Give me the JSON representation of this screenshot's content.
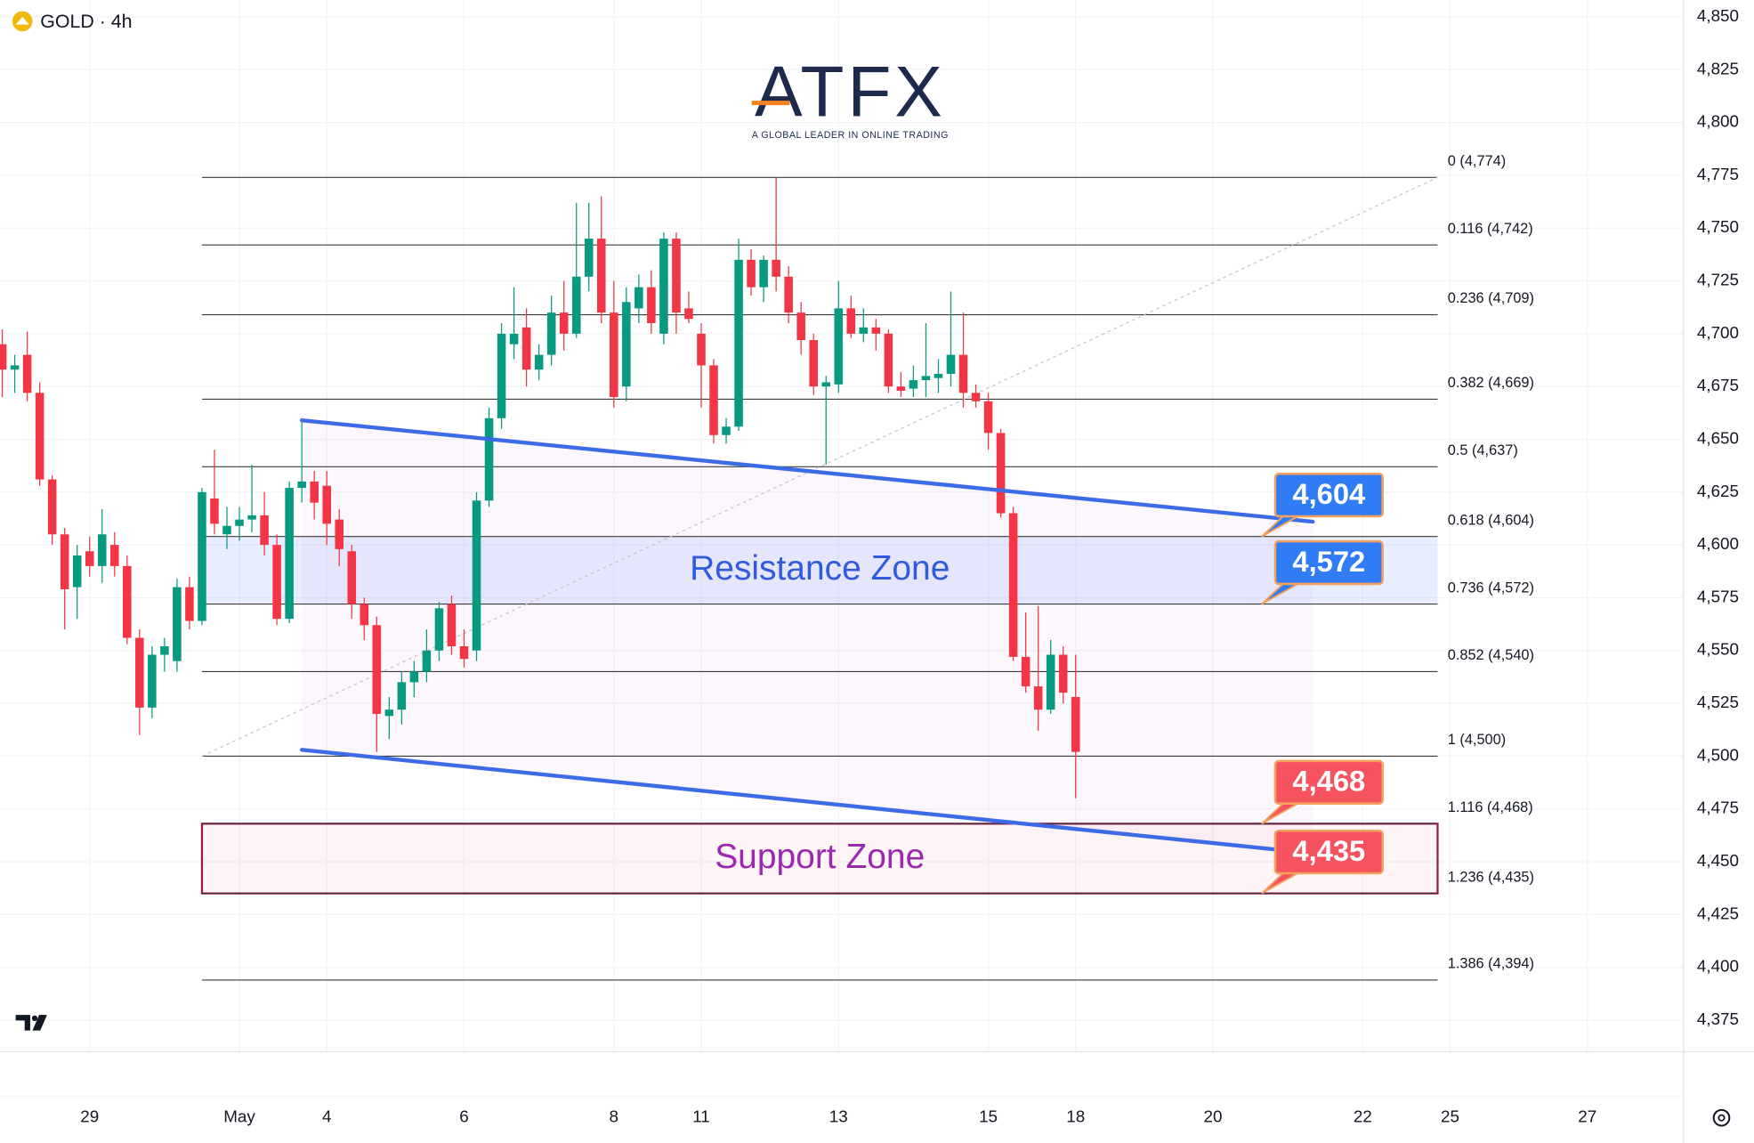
{
  "logo": {
    "name": "ATFX",
    "tagline": "A GLOBAL LEADER IN ONLINE TRADING"
  },
  "chart_data": {
    "type": "candlestick",
    "title": "GOLD · 4h",
    "up_color": "#089981",
    "down_color": "#f23645",
    "open": [
      4695,
      4683,
      4690,
      4672,
      4631,
      4605,
      4580,
      4597,
      4590,
      4600,
      4590,
      4556,
      4523,
      4548,
      4545,
      4580,
      4564,
      4622,
      4605,
      4609,
      4612,
      4614,
      4600,
      4565,
      4627,
      4630,
      4628,
      4612,
      4597,
      4572,
      4562,
      4519,
      4522,
      4535,
      4540,
      4550,
      4572,
      4552,
      4550,
      4621,
      4660,
      4695,
      4703,
      4683,
      4690,
      4710,
      4700,
      4727,
      4745,
      4710,
      4675,
      4712,
      4722,
      4700,
      4745,
      4712,
      4700,
      4685,
      4652,
      4656,
      4735,
      4722,
      4735,
      4727,
      4710,
      4697,
      4675,
      4676,
      4712,
      4700,
      4703,
      4700,
      4675,
      4674,
      4678,
      4679,
      4681,
      4690,
      4672,
      4668,
      4653,
      4615,
      4547,
      4533,
      4522,
      4548,
      4528
    ],
    "high": [
      4702,
      4690,
      4701,
      4677,
      4633,
      4608,
      4600,
      4604,
      4617,
      4606,
      4595,
      4560,
      4552,
      4556,
      4584,
      4585,
      4627,
      4645,
      4618,
      4618,
      4638,
      4625,
      4605,
      4630,
      4660,
      4635,
      4635,
      4617,
      4600,
      4575,
      4566,
      4528,
      4540,
      4545,
      4560,
      4573,
      4576,
      4560,
      4625,
      4665,
      4705,
      4722,
      4712,
      4695,
      4718,
      4725,
      4762,
      4762,
      4765,
      4725,
      4722,
      4728,
      4730,
      4748,
      4748,
      4720,
      4705,
      4688,
      4660,
      4745,
      4740,
      4737,
      4774,
      4732,
      4715,
      4700,
      4680,
      4725,
      4718,
      4712,
      4707,
      4702,
      4682,
      4685,
      4705,
      4688,
      4720,
      4710,
      4676,
      4672,
      4655,
      4618,
      4568,
      4571,
      4555,
      4552,
      4548
    ],
    "low": [
      4670,
      4672,
      4668,
      4628,
      4600,
      4560,
      4565,
      4585,
      4582,
      4585,
      4553,
      4510,
      4518,
      4540,
      4540,
      4560,
      4562,
      4605,
      4598,
      4602,
      4606,
      4595,
      4562,
      4563,
      4620,
      4612,
      4600,
      4590,
      4565,
      4555,
      4502,
      4508,
      4515,
      4528,
      4535,
      4545,
      4548,
      4542,
      4545,
      4618,
      4655,
      4688,
      4675,
      4678,
      4685,
      4692,
      4698,
      4720,
      4705,
      4665,
      4668,
      4705,
      4700,
      4695,
      4700,
      4705,
      4665,
      4648,
      4648,
      4654,
      4718,
      4715,
      4720,
      4705,
      4690,
      4671,
      4638,
      4672,
      4698,
      4696,
      4692,
      4672,
      4670,
      4670,
      4670,
      4672,
      4675,
      4665,
      4665,
      4645,
      4613,
      4545,
      4530,
      4512,
      4520,
      4525,
      4480
    ],
    "close": [
      4683,
      4685,
      4672,
      4631,
      4605,
      4579,
      4595,
      4590,
      4605,
      4590,
      4556,
      4523,
      4548,
      4552,
      4580,
      4564,
      4625,
      4610,
      4609,
      4612,
      4614,
      4600,
      4565,
      4627,
      4630,
      4620,
      4610,
      4598,
      4572,
      4562,
      4520,
      4522,
      4535,
      4540,
      4550,
      4570,
      4552,
      4546,
      4621,
      4660,
      4700,
      4700,
      4683,
      4690,
      4710,
      4700,
      4727,
      4745,
      4710,
      4670,
      4715,
      4722,
      4705,
      4745,
      4710,
      4707,
      4685,
      4652,
      4656,
      4735,
      4722,
      4735,
      4727,
      4710,
      4697,
      4675,
      4677,
      4712,
      4700,
      4703,
      4700,
      4675,
      4673,
      4678,
      4680,
      4681,
      4690,
      4672,
      4668,
      4653,
      4615,
      4547,
      4533,
      4522,
      4548,
      4530,
      4502
    ],
    "xlim": [
      -0.18,
      134.7
    ],
    "xticks": [
      {
        "value": 7,
        "label": "29"
      },
      {
        "value": 19,
        "label": "May"
      },
      {
        "value": 26,
        "label": "4"
      },
      {
        "value": 37,
        "label": "6"
      },
      {
        "value": 49,
        "label": "8"
      },
      {
        "value": 56,
        "label": "11"
      },
      {
        "value": 67,
        "label": "13"
      },
      {
        "value": 79,
        "label": "15"
      },
      {
        "value": 86,
        "label": "18"
      },
      {
        "value": 97,
        "label": "20"
      },
      {
        "value": 109,
        "label": "22"
      },
      {
        "value": 116,
        "label": "25"
      },
      {
        "value": 127,
        "label": "27"
      }
    ],
    "ylim": [
      4360,
      4858
    ],
    "yticks": [
      {
        "value": 4375,
        "label": "4,375"
      },
      {
        "value": 4400,
        "label": "4,400"
      },
      {
        "value": 4425,
        "label": "4,425"
      },
      {
        "value": 4450,
        "label": "4,450"
      },
      {
        "value": 4475,
        "label": "4,475"
      },
      {
        "value": 4500,
        "label": "4,500"
      },
      {
        "value": 4525,
        "label": "4,525"
      },
      {
        "value": 4550,
        "label": "4,550"
      },
      {
        "value": 4575,
        "label": "4,575"
      },
      {
        "value": 4600,
        "label": "4,600"
      },
      {
        "value": 4625,
        "label": "4,625"
      },
      {
        "value": 4650,
        "label": "4,650"
      },
      {
        "value": 4675,
        "label": "4,675"
      },
      {
        "value": 4700,
        "label": "4,700"
      },
      {
        "value": 4725,
        "label": "4,725"
      },
      {
        "value": 4750,
        "label": "4,750"
      },
      {
        "value": 4775,
        "label": "4,775"
      },
      {
        "value": 4800,
        "label": "4,800"
      },
      {
        "value": 4825,
        "label": "4,825"
      },
      {
        "value": 4850,
        "label": "4,850"
      }
    ],
    "grid": true,
    "fib_x_range": [
      16,
      115
    ],
    "fib_levels": [
      {
        "value": 4774,
        "label": "0 (4,774)"
      },
      {
        "value": 4742,
        "label": "0.116 (4,742)"
      },
      {
        "value": 4709,
        "label": "0.236 (4,709)"
      },
      {
        "value": 4669,
        "label": "0.382 (4,669)"
      },
      {
        "value": 4637,
        "label": "0.5 (4,637)"
      },
      {
        "value": 4604,
        "label": "0.618 (4,604)"
      },
      {
        "value": 4572,
        "label": "0.736 (4,572)"
      },
      {
        "value": 4540,
        "label": "0.852 (4,540)"
      },
      {
        "value": 4500,
        "label": "1 (4,500)"
      },
      {
        "value": 4468,
        "label": "1.116 (4,468)"
      },
      {
        "value": 4435,
        "label": "1.236 (4,435)"
      },
      {
        "value": 4394,
        "label": "1.386 (4,394)"
      }
    ],
    "fib_trend": [
      [
        16,
        4500
      ],
      [
        115,
        4774
      ]
    ],
    "zones": [
      {
        "label": "Resistance Zone",
        "range": [
          4572,
          4604
        ],
        "color": "#2f5be0",
        "fill": "rgba(41,98,255,0.11)",
        "border": "none"
      },
      {
        "label": "Support Zone",
        "range": [
          4435,
          4468
        ],
        "color": "#9c27b0",
        "fill": "rgba(242,54,69,0.05)",
        "border": "#a0174f"
      }
    ],
    "trend_lines": [
      {
        "color": "#3d6be8",
        "points": [
          [
            24,
            4659
          ],
          [
            105,
            4611
          ]
        ]
      },
      {
        "color": "#3d6be8",
        "points": [
          [
            24,
            4503
          ],
          [
            105,
            4454
          ]
        ]
      }
    ],
    "callouts": [
      {
        "value": 4604,
        "label": "4,604",
        "color": "#2f7cf6"
      },
      {
        "value": 4572,
        "label": "4,572",
        "color": "#2f7cf6"
      },
      {
        "value": 4468,
        "label": "4,468",
        "color": "#f7525f"
      },
      {
        "value": 4435,
        "label": "4,435",
        "color": "#f7525f"
      }
    ]
  }
}
